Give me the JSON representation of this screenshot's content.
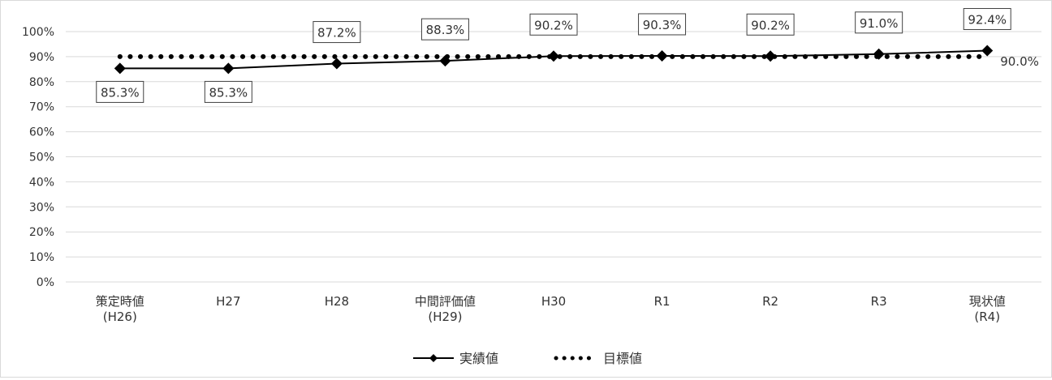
{
  "chart_data": {
    "type": "line",
    "categories": [
      [
        "策定時値",
        "(H26)"
      ],
      [
        "H27"
      ],
      [
        "H28"
      ],
      [
        "中間評価値",
        "(H29)"
      ],
      [
        "H30"
      ],
      [
        "R1"
      ],
      [
        "R2"
      ],
      [
        "R3"
      ],
      [
        "現状値",
        "(R4)"
      ]
    ],
    "y_ticks": [
      "0%",
      "10%",
      "20%",
      "30%",
      "40%",
      "50%",
      "60%",
      "70%",
      "80%",
      "90%",
      "100%"
    ],
    "ylim": [
      0,
      100
    ],
    "grid": true,
    "legend_position": "bottom",
    "series": [
      {
        "name": "実績値",
        "style": "solid-diamond",
        "color": "#000000",
        "values": [
          85.3,
          85.3,
          87.2,
          88.3,
          90.2,
          90.3,
          90.2,
          91.0,
          92.4
        ],
        "labels": [
          "85.3%",
          "85.3%",
          "87.2%",
          "88.3%",
          "90.2%",
          "90.3%",
          "90.2%",
          "91.0%",
          "92.4%"
        ]
      },
      {
        "name": "目標値",
        "style": "dotted",
        "color": "#000000",
        "values": [
          90.0,
          90.0,
          90.0,
          90.0,
          90.0,
          90.0,
          90.0,
          90.0,
          90.0
        ],
        "end_label": "90.0%"
      }
    ]
  }
}
